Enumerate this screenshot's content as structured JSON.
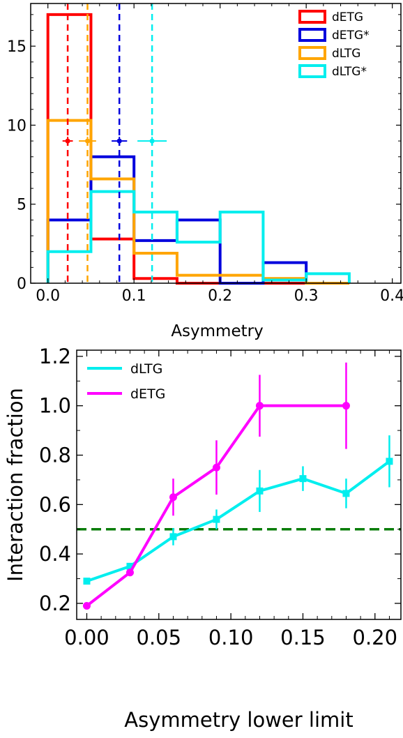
{
  "chart_data": [
    {
      "type": "histogram",
      "xlabel": "Asymmetry",
      "ylabel": "",
      "xlim": [
        -0.02,
        0.41
      ],
      "ylim": [
        0,
        17.7
      ],
      "xticks": [
        "0.0",
        "0.1",
        "0.2",
        "0.3",
        "0.4"
      ],
      "yticks": [
        "0",
        "5",
        "10",
        "15"
      ],
      "legend_position": "top-right",
      "series": [
        {
          "name": "dETG",
          "color": "#ff0000",
          "bins": [
            0,
            0.05,
            0.1,
            0.15,
            0.2,
            0.25,
            0.3,
            0.35
          ],
          "values": [
            17,
            2.8,
            0.3,
            0,
            0,
            0,
            0
          ],
          "median": 0.023,
          "marker_y": 9,
          "median_err": 0.006
        },
        {
          "name": "dETG*",
          "color": "#0000dd",
          "bins": [
            0,
            0.05,
            0.1,
            0.15,
            0.2,
            0.25,
            0.3,
            0.35
          ],
          "values": [
            4,
            8,
            2.7,
            4,
            0,
            1.3,
            0
          ],
          "median": 0.083,
          "marker_y": 9,
          "median_err": 0.009
        },
        {
          "name": "dLTG",
          "color": "#ffa500",
          "bins": [
            0,
            0.05,
            0.1,
            0.15,
            0.2,
            0.25,
            0.3,
            0.35
          ],
          "values": [
            10.3,
            6.6,
            1.9,
            0.5,
            0.5,
            0.3,
            0
          ],
          "median": 0.046,
          "marker_y": 9,
          "median_err": 0.01
        },
        {
          "name": "dLTG*",
          "color": "#00eeee",
          "bins": [
            0,
            0.05,
            0.1,
            0.15,
            0.2,
            0.25,
            0.3,
            0.35
          ],
          "values": [
            2,
            5.8,
            4.5,
            2.6,
            4.5,
            0.2,
            0.6
          ],
          "median": 0.121,
          "marker_y": 9,
          "median_err": 0.017
        }
      ]
    },
    {
      "type": "line",
      "xlabel": "Asymmetry lower limit",
      "ylabel": "Interaction fraction",
      "xlim": [
        -0.007,
        0.218
      ],
      "ylim": [
        0.135,
        1.225
      ],
      "xticks": [
        "0.00",
        "0.05",
        "0.10",
        "0.15",
        "0.20"
      ],
      "yticks": [
        "0.2",
        "0.4",
        "0.6",
        "0.8",
        "1.0",
        "1.2"
      ],
      "reference_line": {
        "y": 0.5,
        "color": "#0a7d0a"
      },
      "legend_position": "top-left",
      "series": [
        {
          "name": "dLTG",
          "color": "#00eeee",
          "marker": "square",
          "x": [
            0.0,
            0.03,
            0.06,
            0.09,
            0.12,
            0.15,
            0.18,
            0.21
          ],
          "y": [
            0.29,
            0.35,
            0.47,
            0.54,
            0.655,
            0.705,
            0.645,
            0.775
          ],
          "err": [
            0.005,
            0.01,
            0.035,
            0.04,
            0.085,
            0.05,
            0.06,
            0.105
          ]
        },
        {
          "name": "dETG",
          "color": "#ff00ff",
          "marker": "circle",
          "x": [
            0.0,
            0.03,
            0.06,
            0.09,
            0.12,
            0.18
          ],
          "y": [
            0.19,
            0.325,
            0.63,
            0.75,
            1.0,
            1.0
          ],
          "err": [
            0.0,
            0.0,
            0.075,
            0.11,
            0.125,
            0.175
          ]
        }
      ]
    }
  ]
}
